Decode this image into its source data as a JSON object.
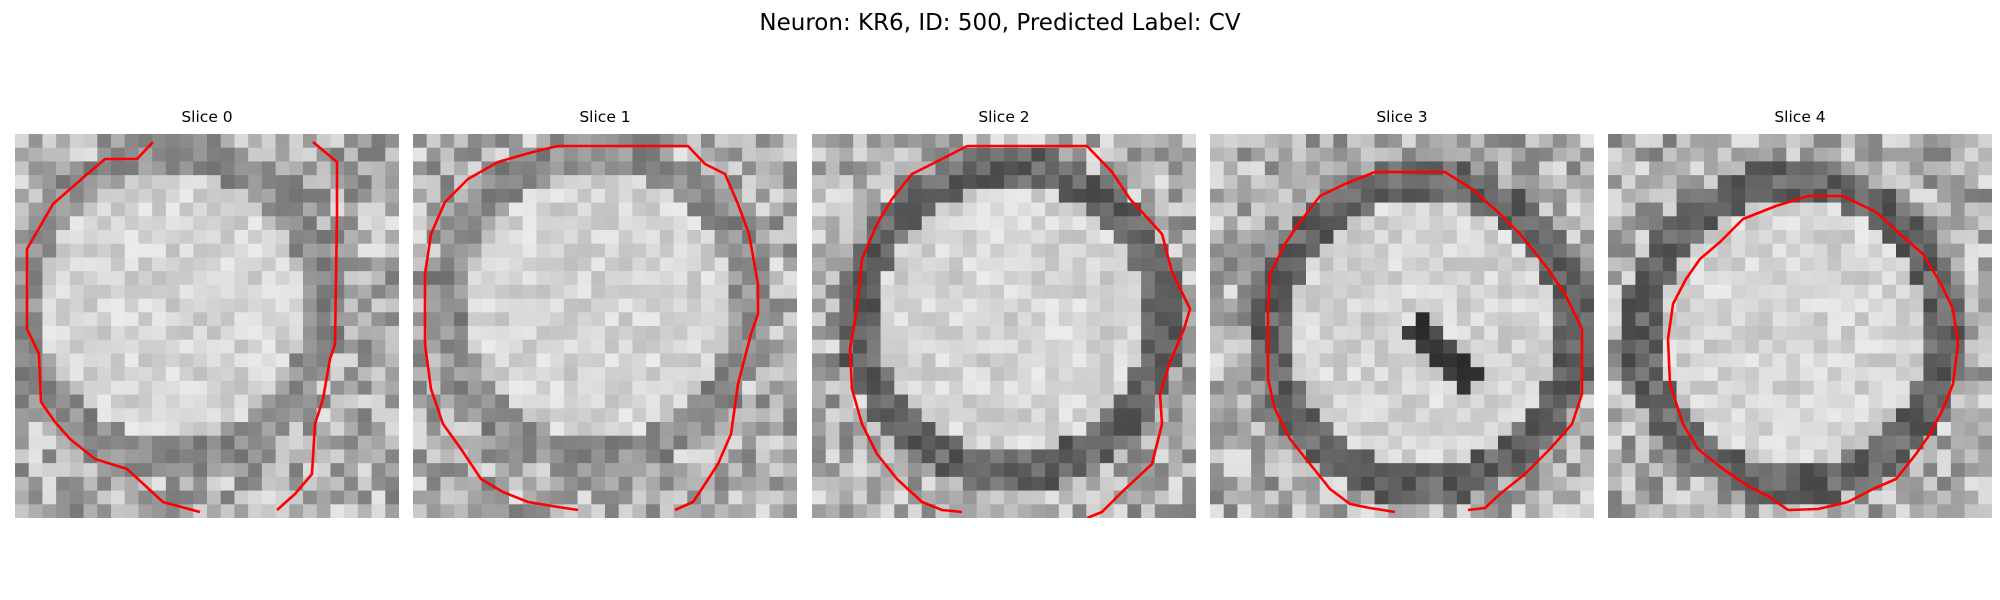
{
  "figure": {
    "title": "Neuron: KR6, ID: 500, Predicted Label: CV"
  },
  "contour_color": "#ff0000",
  "panels": [
    {
      "label": "Slice 0",
      "ring": false,
      "cx": 11,
      "cy": 12,
      "dark_spot": false
    },
    {
      "label": "Slice 1",
      "ring": false,
      "cx": 13,
      "cy": 12,
      "dark_spot": false
    },
    {
      "label": "Slice 2",
      "ring": true,
      "cx": 14,
      "cy": 13,
      "dark_spot": false
    },
    {
      "label": "Slice 3",
      "ring": true,
      "cx": 15,
      "cy": 14,
      "dark_spot": true
    },
    {
      "label": "Slice 4",
      "ring": true,
      "cx": 13,
      "cy": 14,
      "dark_spot": false
    }
  ]
}
